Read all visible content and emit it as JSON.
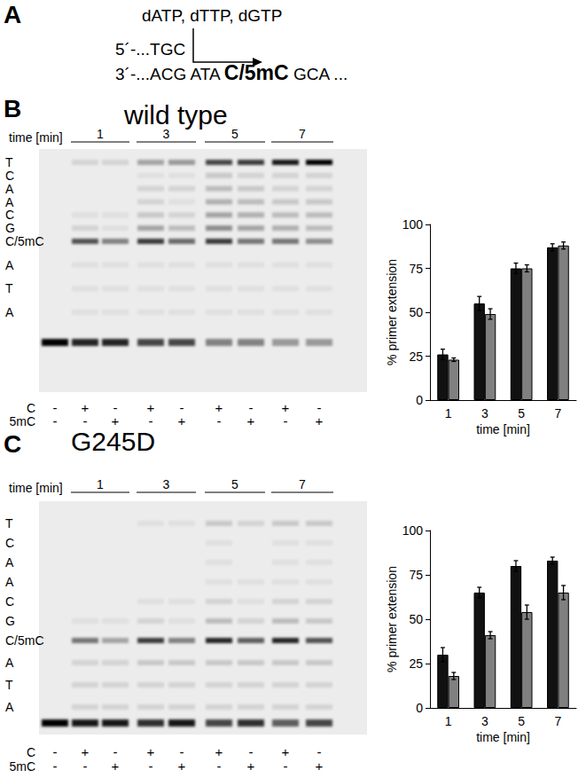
{
  "panel_a": {
    "label": "A",
    "nucleotides": "dATP, dTTP, dGTP",
    "primer": "5´-...TGC",
    "template_prefix": "3´-...ACG ATA ",
    "template_site": "C/5mC",
    "template_suffix": " GCA ..."
  },
  "panels": [
    {
      "label": "B",
      "title": "wild type",
      "gel": {
        "time_label": "time [min]",
        "times": [
          "1",
          "3",
          "5",
          "7"
        ],
        "ladder": [
          "T",
          "C",
          "A",
          "A",
          "C",
          "G",
          "C/5mC",
          "A",
          "T",
          "A"
        ],
        "row_labels": [
          "C",
          "5mC"
        ],
        "lanes": [
          {
            "signs": [
              "-",
              "-"
            ],
            "primer": 1.0,
            "bands": [
              0,
              0,
              0,
              0,
              0,
              0,
              0,
              0,
              0,
              0
            ]
          },
          {
            "signs": [
              "+",
              "-"
            ],
            "primer": 0.85,
            "bands": [
              0.1,
              0,
              0,
              0,
              0.05,
              0.1,
              0.65,
              0.05,
              0.05,
              0.05
            ]
          },
          {
            "signs": [
              "-",
              "+"
            ],
            "primer": 0.85,
            "bands": [
              0.1,
              0,
              0,
              0,
              0.05,
              0.05,
              0.45,
              0.05,
              0.05,
              0.05
            ]
          },
          {
            "signs": [
              "+",
              "-"
            ],
            "primer": 0.7,
            "bands": [
              0.3,
              0.05,
              0.1,
              0.1,
              0.15,
              0.3,
              0.75,
              0.05,
              0.05,
              0.05
            ]
          },
          {
            "signs": [
              "-",
              "+"
            ],
            "primer": 0.7,
            "bands": [
              0.35,
              0.05,
              0.1,
              0.05,
              0.1,
              0.2,
              0.55,
              0.05,
              0.05,
              0.05
            ]
          },
          {
            "signs": [
              "+",
              "-"
            ],
            "primer": 0.45,
            "bands": [
              0.7,
              0.15,
              0.2,
              0.25,
              0.3,
              0.4,
              0.75,
              0.05,
              0.05,
              0.05
            ]
          },
          {
            "signs": [
              "-",
              "+"
            ],
            "primer": 0.45,
            "bands": [
              0.75,
              0.1,
              0.15,
              0.2,
              0.25,
              0.3,
              0.5,
              0.05,
              0.05,
              0.05
            ]
          },
          {
            "signs": [
              "+",
              "-"
            ],
            "primer": 0.35,
            "bands": [
              0.9,
              0.1,
              0.1,
              0.15,
              0.2,
              0.25,
              0.5,
              0.05,
              0.05,
              0.05
            ]
          },
          {
            "signs": [
              "-",
              "+"
            ],
            "primer": 0.35,
            "bands": [
              1.0,
              0.1,
              0.1,
              0.15,
              0.2,
              0.2,
              0.4,
              0.05,
              0.05,
              0.05
            ]
          }
        ]
      }
    },
    {
      "label": "C",
      "title": "G245D",
      "gel": {
        "time_label": "time [min]",
        "times": [
          "1",
          "3",
          "5",
          "7"
        ],
        "ladder": [
          "T",
          "C",
          "A",
          "A",
          "C",
          "G",
          "C/5mC",
          "A",
          "T",
          "A"
        ],
        "row_labels": [
          "C",
          "5mC"
        ],
        "lanes": [
          {
            "signs": [
              "-",
              "-"
            ],
            "primer": 1.0,
            "bands": [
              0,
              0,
              0,
              0,
              0,
              0,
              0,
              0,
              0,
              0
            ]
          },
          {
            "signs": [
              "+",
              "-"
            ],
            "primer": 0.9,
            "bands": [
              0,
              0,
              0,
              0,
              0,
              0.05,
              0.5,
              0.1,
              0.1,
              0.1
            ]
          },
          {
            "signs": [
              "-",
              "+"
            ],
            "primer": 0.9,
            "bands": [
              0,
              0,
              0,
              0,
              0,
              0.05,
              0.3,
              0.1,
              0.1,
              0.1
            ]
          },
          {
            "signs": [
              "+",
              "-"
            ],
            "primer": 0.8,
            "bands": [
              0.05,
              0,
              0,
              0,
              0.05,
              0.1,
              0.75,
              0.15,
              0.1,
              0.1
            ]
          },
          {
            "signs": [
              "-",
              "+"
            ],
            "primer": 0.9,
            "bands": [
              0.05,
              0,
              0,
              0,
              0.05,
              0.05,
              0.45,
              0.15,
              0.1,
              0.1
            ]
          },
          {
            "signs": [
              "+",
              "-"
            ],
            "primer": 0.7,
            "bands": [
              0.15,
              0.05,
              0.05,
              0.05,
              0.1,
              0.2,
              0.85,
              0.15,
              0.1,
              0.1
            ]
          },
          {
            "signs": [
              "-",
              "+"
            ],
            "primer": 0.8,
            "bands": [
              0.1,
              0,
              0,
              0.05,
              0.05,
              0.1,
              0.6,
              0.15,
              0.1,
              0.1
            ]
          },
          {
            "signs": [
              "+",
              "-"
            ],
            "primer": 0.6,
            "bands": [
              0.15,
              0.05,
              0.05,
              0.05,
              0.1,
              0.2,
              0.85,
              0.15,
              0.1,
              0.1
            ]
          },
          {
            "signs": [
              "-",
              "+"
            ],
            "primer": 0.7,
            "bands": [
              0.15,
              0.05,
              0.05,
              0.05,
              0.1,
              0.15,
              0.65,
              0.15,
              0.1,
              0.1
            ]
          }
        ]
      }
    }
  ],
  "chart_data": [
    {
      "type": "bar",
      "categories": [
        "1",
        "3",
        "5",
        "7"
      ],
      "x_label": "time [min]",
      "y_label": "% primer extension",
      "ylim": [
        0,
        100
      ],
      "yticks": [
        0,
        25,
        50,
        75,
        100
      ],
      "grid": false,
      "series": [
        {
          "name": "C",
          "color": "#111111",
          "values": [
            26,
            55,
            75,
            87
          ],
          "errors": [
            3,
            4,
            3,
            2
          ]
        },
        {
          "name": "5mC",
          "color": "#808080",
          "values": [
            23,
            49,
            75,
            88
          ],
          "errors": [
            1,
            3,
            2,
            2
          ]
        }
      ]
    },
    {
      "type": "bar",
      "categories": [
        "1",
        "3",
        "5",
        "7"
      ],
      "x_label": "time [min]",
      "y_label": "% primer extension",
      "ylim": [
        0,
        100
      ],
      "yticks": [
        0,
        25,
        50,
        75,
        100
      ],
      "grid": false,
      "series": [
        {
          "name": "C",
          "color": "#111111",
          "values": [
            30,
            65,
            80,
            83
          ],
          "errors": [
            4,
            3,
            3,
            2
          ]
        },
        {
          "name": "5mC",
          "color": "#808080",
          "values": [
            18,
            41,
            54,
            65
          ],
          "errors": [
            2,
            2,
            4,
            4
          ]
        }
      ]
    }
  ]
}
